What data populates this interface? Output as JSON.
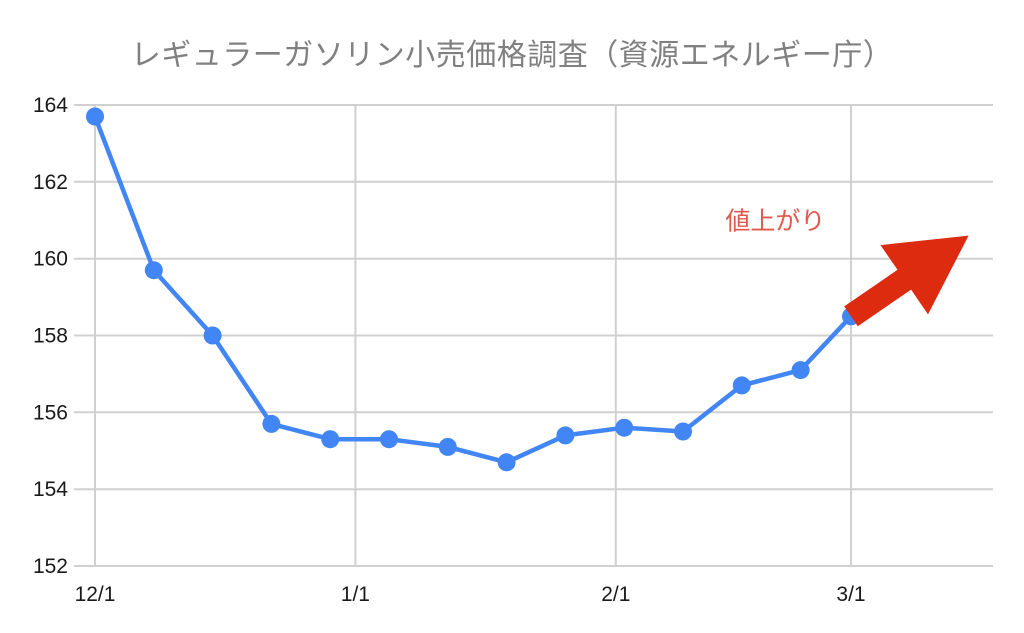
{
  "page": {
    "background_color": "#ffffff"
  },
  "chart_data": {
    "type": "line",
    "title": "レギュラーガソリン小売価格調査（資源エネルギー庁）",
    "title_color": "#808080",
    "grid": {
      "show": true,
      "color": "#d0d0d0"
    },
    "x_axis": {
      "tick_labels": [
        "12/1",
        "1/1",
        "2/1",
        "3/1"
      ],
      "tick_day_offsets": [
        0,
        31,
        62,
        90
      ],
      "label_color": "#1a1a1a"
    },
    "y_axis": {
      "ticks": [
        152,
        154,
        156,
        158,
        160,
        162,
        164
      ],
      "min": 152,
      "max": 164,
      "label_color": "#1a1a1a"
    },
    "series": [
      {
        "color": "#4285f4",
        "marker": "circle",
        "x_day_offsets": [
          0,
          7,
          14,
          21,
          28,
          35,
          42,
          49,
          56,
          63,
          70,
          77,
          84,
          90
        ],
        "values": [
          163.7,
          159.7,
          158.0,
          155.7,
          155.3,
          155.3,
          155.1,
          154.7,
          155.4,
          155.6,
          155.5,
          156.7,
          157.1,
          158.5
        ]
      }
    ],
    "annotation": {
      "text": "値上がり",
      "color": "#e0594c",
      "day": 81,
      "value": 161.0
    },
    "arrow": {
      "color": "#dd2b10",
      "from": {
        "day": 90,
        "value": 158.5
      },
      "to": {
        "day": 104,
        "value": 160.6
      },
      "shaft_width": 24,
      "head_length": 78,
      "head_width": 84
    },
    "legend": {
      "show": false
    }
  }
}
